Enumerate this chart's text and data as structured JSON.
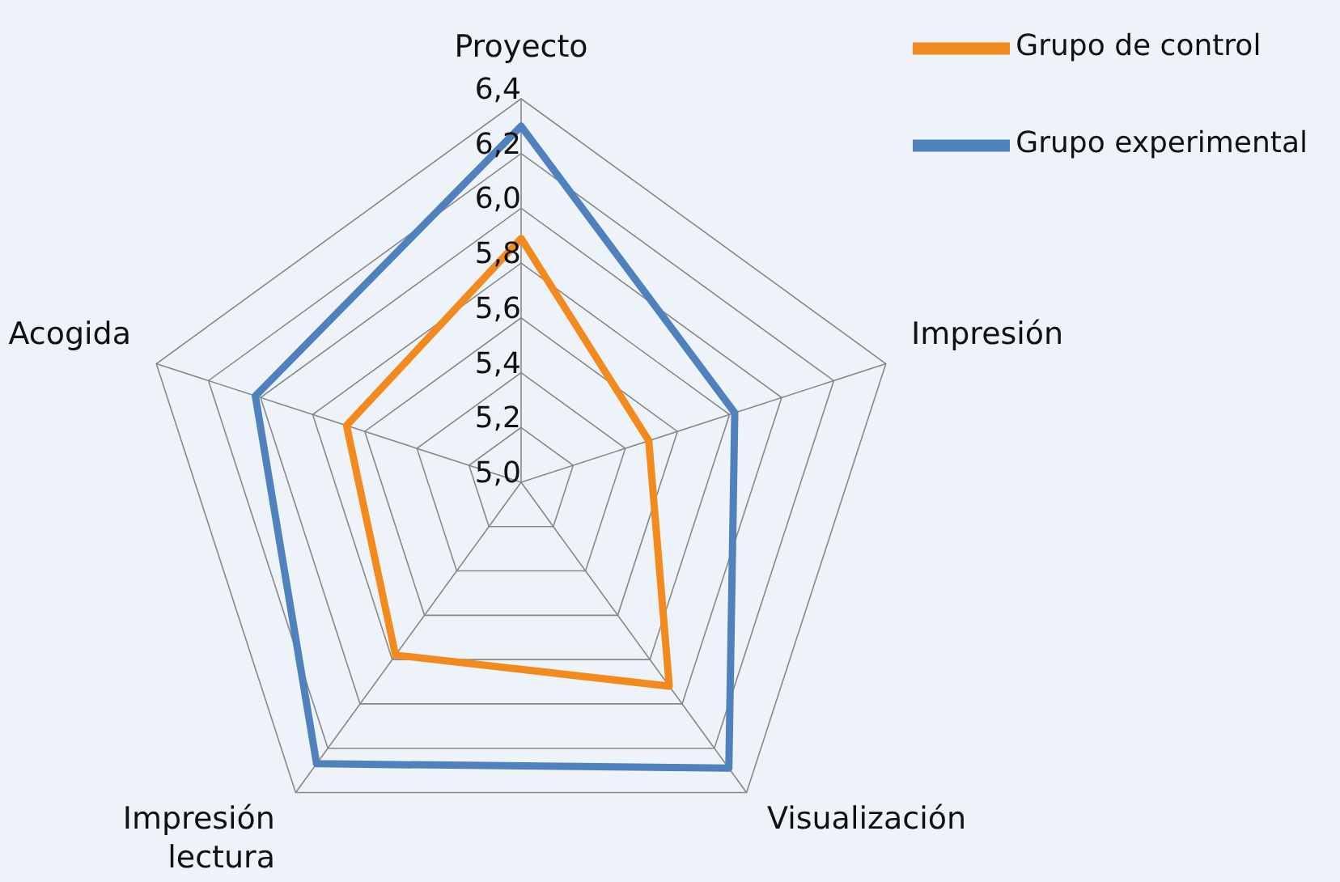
{
  "chart_data": {
    "type": "radar",
    "categories": [
      "Proyecto",
      "Impresión",
      "Visualización",
      "Impresión lectura",
      "Acogida"
    ],
    "series": [
      {
        "name": "Grupo experimental",
        "color": "#4f81bd",
        "values": [
          6.3,
          5.82,
          6.29,
          6.27,
          6.02
        ]
      },
      {
        "name": "Grupo de control",
        "color": "#f28a1e",
        "values": [
          5.89,
          5.49,
          5.92,
          5.78,
          5.67
        ]
      }
    ],
    "ylim": [
      5.0,
      6.4
    ],
    "yticks": [
      {
        "value": 5.0,
        "label": "5,0"
      },
      {
        "value": 5.2,
        "label": "5,2"
      },
      {
        "value": 5.4,
        "label": "5,4"
      },
      {
        "value": 5.6,
        "label": "5,6"
      },
      {
        "value": 5.8,
        "label": "5,8"
      },
      {
        "value": 6.0,
        "label": "6,0"
      },
      {
        "value": 6.2,
        "label": "6,2"
      },
      {
        "value": 6.4,
        "label": "6,4"
      }
    ],
    "grid": true,
    "legend": "top right"
  }
}
